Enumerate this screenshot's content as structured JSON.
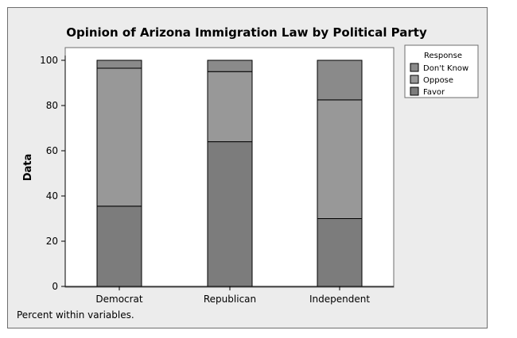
{
  "chart_data": {
    "type": "bar",
    "stacked": true,
    "title": "Opinion of Arizona Immigration Law by Political Party",
    "xlabel": "",
    "ylabel": "Data",
    "ylim": [
      0,
      100
    ],
    "yticks": [
      0,
      20,
      40,
      60,
      80,
      100
    ],
    "categories": [
      "Democrat",
      "Republican",
      "Independent"
    ],
    "legend": {
      "title": "Response",
      "position": "right-top"
    },
    "series": [
      {
        "name": "Favor",
        "values": [
          35.5,
          64,
          30
        ],
        "color": "#7c7c7c"
      },
      {
        "name": "Oppose",
        "values": [
          61,
          31,
          52.5
        ],
        "color": "#989898"
      },
      {
        "name": "Don't Know",
        "values": [
          3.5,
          5,
          17.5
        ],
        "color": "#8a8a8a"
      }
    ],
    "legend_order": [
      "Don't Know",
      "Oppose",
      "Favor"
    ],
    "footnote": "Percent within variables.",
    "grid": false
  }
}
